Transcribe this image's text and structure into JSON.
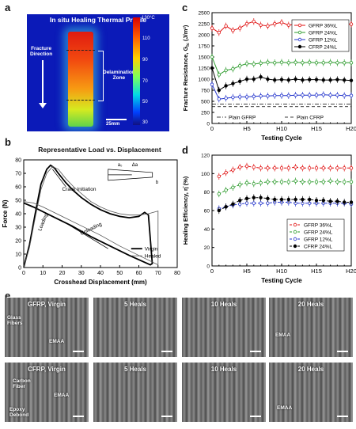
{
  "panel_labels": {
    "a": "a",
    "b": "b",
    "c": "c",
    "d": "d",
    "e": "e"
  },
  "panel_a": {
    "title": "In situ Healing Thermal Profile",
    "colorbar_max": "130°C",
    "colorbar_ticks": [
      "110",
      "90",
      "70",
      "50",
      "30"
    ],
    "fracture_label_1": "Fracture",
    "fracture_label_2": "Direction",
    "delam_label_1": "Delamination",
    "delam_label_2": "Zone",
    "scalebar": "25mm"
  },
  "panel_b": {
    "title": "Representative Load vs. Displacement",
    "ylabel": "Force (N)",
    "xlabel": "Crosshead Displacement (mm)",
    "annotations": {
      "crack": "Crack Initiation",
      "loading": "Loading",
      "unloading": "Unloading"
    },
    "inset": {
      "a0": "a₀",
      "da": "Δa",
      "b": "b"
    },
    "legend": [
      "Virgin",
      "Healed"
    ]
  },
  "panel_c": {
    "ylabel": "Fracture Resistance, G",
    "ylabel_sub": "Ic",
    "ylabel_unit": " (J/m²)",
    "xlabel": "Testing Cycle",
    "legend": [
      "GFRP 36%L",
      "GFRP 24%L",
      "GFRP 12%L",
      "CFRP 24%L"
    ],
    "ref_labels": [
      "Plain GFRP",
      "Plain CFRP"
    ]
  },
  "panel_d": {
    "ylabel": "Healing Efficiency, η̄ (%)",
    "xlabel": "Testing Cycle",
    "legend": [
      "GFRP 36%L",
      "GFRP 24%L",
      "GFRP 12%L",
      "CFRP 24%L"
    ]
  },
  "panel_e": {
    "top": [
      {
        "title": "GFRP, Virgin",
        "notes": [
          "Glass",
          "Fibers",
          "EMAA"
        ]
      },
      {
        "title": "5 Heals",
        "notes": []
      },
      {
        "title": "10 Heals",
        "notes": []
      },
      {
        "title": "20 Heals",
        "notes": [
          "EMAA"
        ]
      }
    ],
    "bottom": [
      {
        "title": "CFRP, Virgin",
        "notes": [
          "Carbon",
          "Fiber",
          "EMAA",
          "Epoxy",
          "Debond"
        ]
      },
      {
        "title": "5 Heals",
        "notes": []
      },
      {
        "title": "10 Heals",
        "notes": []
      },
      {
        "title": "20 Heals",
        "notes": [
          "EMAA"
        ]
      }
    ]
  },
  "chart_data": [
    {
      "type": "line",
      "panel": "b",
      "title": "Representative Load vs. Displacement",
      "xlabel": "Crosshead Displacement (mm)",
      "ylabel": "Force (N)",
      "xlim": [
        0,
        80
      ],
      "ylim": [
        0,
        80
      ],
      "xticks": [
        0,
        10,
        20,
        30,
        40,
        50,
        60,
        70,
        80
      ],
      "yticks": [
        0,
        10,
        20,
        30,
        40,
        50,
        60,
        70,
        80
      ],
      "series": [
        {
          "name": "Virgin",
          "x": [
            0,
            3,
            6,
            9,
            12,
            14,
            16,
            18,
            22,
            26,
            30,
            35,
            40,
            45,
            50,
            55,
            60,
            63,
            65,
            67,
            66,
            55,
            45,
            35,
            25,
            15,
            5,
            0
          ],
          "y": [
            0,
            17,
            40,
            62,
            73,
            76,
            74,
            70,
            63,
            57,
            52,
            47,
            43,
            40,
            38,
            37,
            38,
            41,
            39,
            3,
            2,
            9,
            16,
            23,
            31,
            38,
            45,
            48
          ]
        },
        {
          "name": "Healed",
          "x": [
            0,
            3,
            6,
            9,
            12,
            15,
            18,
            22,
            26,
            30,
            35,
            40,
            45,
            50,
            55,
            60,
            65,
            70,
            70,
            60,
            50,
            40,
            30,
            20,
            10,
            5,
            0
          ],
          "y": [
            0,
            15,
            37,
            58,
            70,
            75,
            73,
            66,
            60,
            55,
            49,
            45,
            42,
            40,
            39,
            39,
            40,
            42,
            2,
            9,
            16,
            24,
            31,
            38,
            45,
            48,
            49
          ]
        }
      ]
    },
    {
      "type": "line",
      "panel": "c",
      "xlabel": "Testing Cycle",
      "ylabel": "Fracture Resistance, GIc (J/m²)",
      "xlim": [
        0,
        20
      ],
      "ylim": [
        0,
        2500
      ],
      "xticks": [
        "0",
        "H5",
        "H10",
        "H15",
        "H20"
      ],
      "yticks": [
        0,
        250,
        500,
        750,
        1000,
        1250,
        1500,
        1750,
        2000,
        2250,
        2500
      ],
      "x": [
        0,
        1,
        2,
        3,
        4,
        5,
        6,
        7,
        8,
        9,
        10,
        11,
        12,
        13,
        14,
        15,
        16,
        17,
        18,
        19,
        20
      ],
      "series": [
        {
          "name": "GFRP 36%L",
          "color": "#e01010",
          "values": [
            2150,
            2050,
            2200,
            2100,
            2150,
            2250,
            2300,
            2220,
            2200,
            2250,
            2280,
            2220,
            2240,
            2260,
            2230,
            2250,
            2240,
            2250,
            2230,
            2250,
            2240
          ]
        },
        {
          "name": "GFRP 24%L",
          "color": "#2a9a2a",
          "values": [
            1500,
            1100,
            1200,
            1230,
            1300,
            1350,
            1340,
            1360,
            1380,
            1370,
            1380,
            1370,
            1380,
            1370,
            1380,
            1370,
            1370,
            1380,
            1370,
            1370,
            1370
          ]
        },
        {
          "name": "GFRP 12%L",
          "color": "#2233cc",
          "values": [
            880,
            550,
            570,
            590,
            600,
            600,
            610,
            620,
            620,
            630,
            630,
            630,
            640,
            640,
            640,
            640,
            650,
            640,
            640,
            630,
            630
          ]
        },
        {
          "name": "CFRP 24%L",
          "color": "#000000",
          "values": [
            1250,
            750,
            850,
            900,
            950,
            1000,
            1000,
            1050,
            1000,
            980,
            990,
            980,
            1000,
            980,
            990,
            990,
            980,
            980,
            990,
            980,
            970
          ]
        }
      ],
      "reference_lines": [
        {
          "name": "Plain GFRP",
          "value": 440
        },
        {
          "name": "Plain CFRP",
          "value": 380
        }
      ]
    },
    {
      "type": "line",
      "panel": "d",
      "xlabel": "Testing Cycle",
      "ylabel": "Healing Efficiency, η̄ (%)",
      "xlim": [
        0,
        20
      ],
      "ylim": [
        0,
        120
      ],
      "xticks": [
        "0",
        "H5",
        "H10",
        "H15",
        "H20"
      ],
      "yticks": [
        0,
        20,
        40,
        60,
        80,
        100,
        120
      ],
      "x": [
        1,
        2,
        3,
        4,
        5,
        6,
        7,
        8,
        9,
        10,
        11,
        12,
        13,
        14,
        15,
        16,
        17,
        18,
        19,
        20
      ],
      "series": [
        {
          "name": "GFRP 36%L",
          "color": "#e01010",
          "values": [
            97,
            101,
            104,
            107,
            108,
            107,
            106,
            106,
            106,
            106,
            106,
            107,
            106,
            106,
            106,
            106,
            106,
            106,
            106,
            106
          ]
        },
        {
          "name": "GFRP 24%L",
          "color": "#2a9a2a",
          "values": [
            78,
            82,
            85,
            88,
            90,
            89,
            90,
            91,
            91,
            91,
            91,
            92,
            91,
            91,
            91,
            91,
            92,
            91,
            91,
            91
          ]
        },
        {
          "name": "GFRP 12%L",
          "color": "#2233cc",
          "values": [
            62,
            64,
            66,
            67,
            68,
            68,
            68,
            68,
            69,
            69,
            69,
            68,
            68,
            68,
            68,
            68,
            68,
            68,
            68,
            67
          ]
        },
        {
          "name": "CFRP 24%L",
          "color": "#000000",
          "values": [
            60,
            64,
            67,
            71,
            73,
            74,
            74,
            73,
            72,
            72,
            72,
            72,
            72,
            72,
            71,
            71,
            70,
            70,
            69,
            69
          ]
        }
      ]
    }
  ]
}
